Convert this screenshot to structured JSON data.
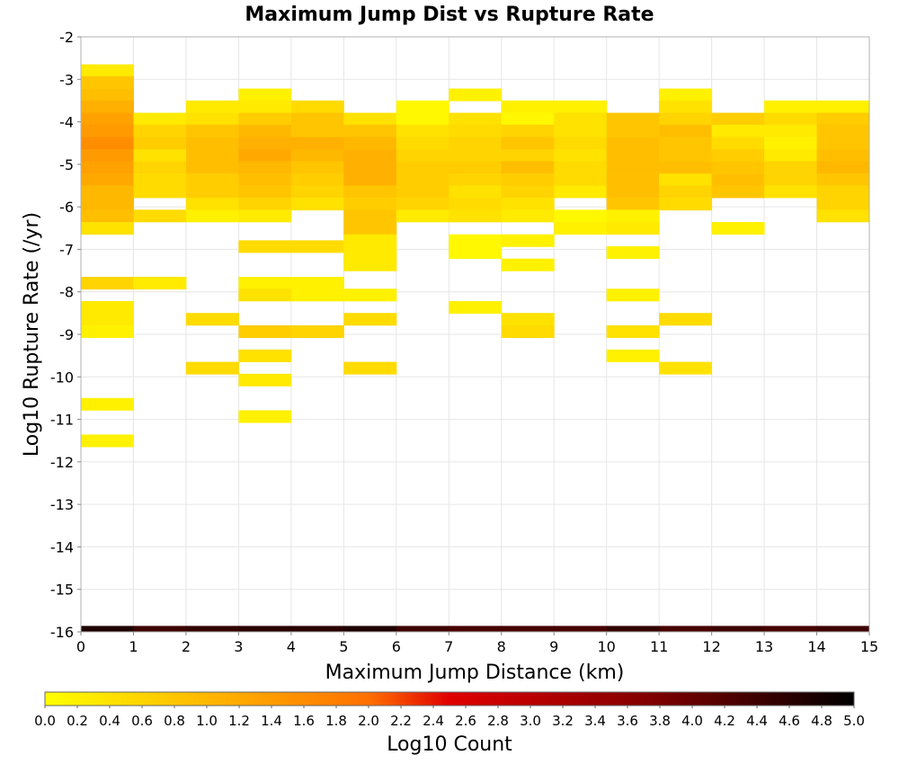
{
  "chart_data": {
    "type": "heatmap",
    "title": "Maximum Jump Dist vs Rupture Rate",
    "xlabel": "Maximum Jump Distance (km)",
    "ylabel": "Log10 Rupture Rate (/yr)",
    "xlim": [
      0,
      15
    ],
    "ylim": [
      -16,
      -2
    ],
    "x_ticks": [
      "0",
      "1",
      "2",
      "3",
      "4",
      "5",
      "6",
      "7",
      "8",
      "9",
      "10",
      "11",
      "12",
      "13",
      "14",
      "15"
    ],
    "y_ticks": [
      "-16",
      "-15",
      "-14",
      "-13",
      "-12",
      "-11",
      "-10",
      "-9",
      "-8",
      "-7",
      "-6",
      "-5",
      "-4",
      "-3",
      "-2"
    ],
    "x_bin_width": 1,
    "y_bin_height": 0.286,
    "grid": true,
    "colorbar": {
      "label": "Log10 Count",
      "range": [
        0,
        5
      ],
      "colors": [
        "#ffff00",
        "#ff7000",
        "#e00000",
        "#800000",
        "#000000"
      ],
      "ticks": [
        "0.0",
        "0.2",
        "0.4",
        "0.6",
        "0.8",
        "1.0",
        "1.2",
        "1.4",
        "1.6",
        "1.8",
        "2.0",
        "2.2",
        "2.4",
        "2.6",
        "2.8",
        "3.0",
        "3.2",
        "3.4",
        "3.6",
        "3.8",
        "4.0",
        "4.2",
        "4.4",
        "4.6",
        "4.8",
        "5.0"
      ]
    },
    "bottom_row": {
      "y": -15.93,
      "values": [
        4.7,
        4.4,
        4.5,
        4.6,
        4.6,
        4.7,
        4.4,
        4.3,
        4.3,
        4.3,
        4.5,
        4.3,
        4.4,
        4.3,
        4.4
      ]
    },
    "columns": [
      {
        "x": 0,
        "cells": [
          [
            -2.79,
            0.3
          ],
          [
            -3.07,
            0.8
          ],
          [
            -3.36,
            0.9
          ],
          [
            -3.64,
            1.1
          ],
          [
            -3.93,
            1.3
          ],
          [
            -4.21,
            1.4
          ],
          [
            -4.5,
            1.6
          ],
          [
            -4.79,
            1.4
          ],
          [
            -5.07,
            1.3
          ],
          [
            -5.36,
            1.2
          ],
          [
            -5.64,
            1.0
          ],
          [
            -5.93,
            1.0
          ],
          [
            -6.21,
            0.9
          ],
          [
            -6.5,
            0.4
          ],
          [
            -7.79,
            0.6
          ],
          [
            -8.36,
            0.3
          ],
          [
            -8.64,
            0.3
          ],
          [
            -8.93,
            0.2
          ],
          [
            -10.64,
            0.2
          ],
          [
            -11.5,
            0.2
          ]
        ]
      },
      {
        "x": 1,
        "cells": [
          [
            -3.93,
            0.3
          ],
          [
            -4.21,
            0.6
          ],
          [
            -4.5,
            0.7
          ],
          [
            -4.79,
            0.4
          ],
          [
            -5.07,
            0.6
          ],
          [
            -5.36,
            0.5
          ],
          [
            -5.64,
            0.5
          ],
          [
            -6.21,
            0.5
          ],
          [
            -7.79,
            0.3
          ]
        ]
      },
      {
        "x": 2,
        "cells": [
          [
            -3.64,
            0.3
          ],
          [
            -3.93,
            0.4
          ],
          [
            -4.21,
            0.8
          ],
          [
            -4.5,
            0.9
          ],
          [
            -4.79,
            0.9
          ],
          [
            -5.07,
            0.9
          ],
          [
            -5.36,
            0.7
          ],
          [
            -5.64,
            0.7
          ],
          [
            -5.93,
            0.4
          ],
          [
            -6.21,
            0.2
          ],
          [
            -8.64,
            0.5
          ],
          [
            -9.79,
            0.5
          ]
        ]
      },
      {
        "x": 3,
        "cells": [
          [
            -3.36,
            0.2
          ],
          [
            -3.64,
            0.3
          ],
          [
            -3.93,
            0.7
          ],
          [
            -4.21,
            1.0
          ],
          [
            -4.5,
            1.1
          ],
          [
            -4.79,
            1.2
          ],
          [
            -5.07,
            1.0
          ],
          [
            -5.36,
            0.9
          ],
          [
            -5.64,
            0.8
          ],
          [
            -5.93,
            0.6
          ],
          [
            -6.21,
            0.3
          ],
          [
            -6.93,
            0.5
          ],
          [
            -7.79,
            0.2
          ],
          [
            -8.07,
            0.4
          ],
          [
            -8.93,
            0.7
          ],
          [
            -9.5,
            0.4
          ],
          [
            -10.07,
            0.3
          ],
          [
            -10.93,
            0.2
          ]
        ]
      },
      {
        "x": 4,
        "cells": [
          [
            -3.64,
            0.5
          ],
          [
            -3.93,
            0.8
          ],
          [
            -4.21,
            0.8
          ],
          [
            -4.5,
            1.1
          ],
          [
            -4.79,
            1.0
          ],
          [
            -5.07,
            0.8
          ],
          [
            -5.36,
            0.7
          ],
          [
            -5.64,
            0.6
          ],
          [
            -5.93,
            0.4
          ],
          [
            -6.93,
            0.5
          ],
          [
            -7.79,
            0.2
          ],
          [
            -8.07,
            0.2
          ],
          [
            -8.93,
            0.6
          ]
        ]
      },
      {
        "x": 5,
        "cells": [
          [
            -3.93,
            0.4
          ],
          [
            -4.21,
            0.8
          ],
          [
            -4.5,
            1.0
          ],
          [
            -4.79,
            1.1
          ],
          [
            -5.07,
            1.1
          ],
          [
            -5.36,
            1.1
          ],
          [
            -5.64,
            0.8
          ],
          [
            -5.93,
            0.7
          ],
          [
            -6.21,
            0.8
          ],
          [
            -6.5,
            0.8
          ],
          [
            -6.79,
            0.3
          ],
          [
            -7.07,
            0.3
          ],
          [
            -7.36,
            0.3
          ],
          [
            -8.07,
            0.2
          ],
          [
            -8.64,
            0.5
          ],
          [
            -9.79,
            0.5
          ]
        ]
      },
      {
        "x": 6,
        "cells": [
          [
            -3.64,
            0.1
          ],
          [
            -3.93,
            0.1
          ],
          [
            -4.21,
            0.4
          ],
          [
            -4.5,
            0.5
          ],
          [
            -4.79,
            0.6
          ],
          [
            -5.07,
            0.7
          ],
          [
            -5.36,
            0.7
          ],
          [
            -5.64,
            0.7
          ],
          [
            -5.93,
            0.6
          ],
          [
            -6.21,
            0.3
          ]
        ]
      },
      {
        "x": 7,
        "cells": [
          [
            -3.36,
            0.2
          ],
          [
            -3.93,
            0.4
          ],
          [
            -4.21,
            0.5
          ],
          [
            -4.5,
            0.6
          ],
          [
            -4.79,
            0.6
          ],
          [
            -5.07,
            0.7
          ],
          [
            -5.36,
            0.6
          ],
          [
            -5.64,
            0.4
          ],
          [
            -5.93,
            0.5
          ],
          [
            -6.21,
            0.4
          ],
          [
            -6.79,
            0.1
          ],
          [
            -7.07,
            0.1
          ],
          [
            -8.36,
            0.2
          ]
        ]
      },
      {
        "x": 8,
        "cells": [
          [
            -3.64,
            0.2
          ],
          [
            -3.93,
            0.1
          ],
          [
            -4.21,
            0.6
          ],
          [
            -4.5,
            0.8
          ],
          [
            -4.79,
            0.6
          ],
          [
            -5.07,
            0.9
          ],
          [
            -5.36,
            0.7
          ],
          [
            -5.64,
            0.6
          ],
          [
            -5.93,
            0.4
          ],
          [
            -6.21,
            0.3
          ],
          [
            -6.79,
            0.2
          ],
          [
            -7.36,
            0.2
          ],
          [
            -8.64,
            0.4
          ],
          [
            -8.93,
            0.5
          ]
        ]
      },
      {
        "x": 9,
        "cells": [
          [
            -3.64,
            0.2
          ],
          [
            -3.93,
            0.4
          ],
          [
            -4.21,
            0.4
          ],
          [
            -4.5,
            0.5
          ],
          [
            -4.79,
            0.4
          ],
          [
            -5.07,
            0.5
          ],
          [
            -5.36,
            0.5
          ],
          [
            -5.64,
            0.3
          ],
          [
            -6.21,
            0.1
          ],
          [
            -6.5,
            0.2
          ]
        ]
      },
      {
        "x": 10,
        "cells": [
          [
            -3.93,
            0.8
          ],
          [
            -4.21,
            0.8
          ],
          [
            -4.5,
            0.9
          ],
          [
            -4.79,
            0.9
          ],
          [
            -5.07,
            0.9
          ],
          [
            -5.36,
            0.9
          ],
          [
            -5.64,
            0.9
          ],
          [
            -5.93,
            0.8
          ],
          [
            -6.21,
            0.2
          ],
          [
            -6.5,
            0.3
          ],
          [
            -7.07,
            0.2
          ],
          [
            -8.07,
            0.2
          ],
          [
            -8.93,
            0.4
          ],
          [
            -9.5,
            0.2
          ]
        ]
      },
      {
        "x": 11,
        "cells": [
          [
            -3.36,
            0.2
          ],
          [
            -3.64,
            0.4
          ],
          [
            -3.93,
            0.6
          ],
          [
            -4.21,
            0.9
          ],
          [
            -4.5,
            0.8
          ],
          [
            -4.79,
            0.8
          ],
          [
            -5.07,
            0.9
          ],
          [
            -5.36,
            0.4
          ],
          [
            -5.64,
            0.6
          ],
          [
            -5.93,
            0.5
          ],
          [
            -8.64,
            0.5
          ],
          [
            -9.79,
            0.4
          ]
        ]
      },
      {
        "x": 12,
        "cells": [
          [
            -3.93,
            0.7
          ],
          [
            -4.21,
            0.3
          ],
          [
            -4.5,
            0.5
          ],
          [
            -4.79,
            0.7
          ],
          [
            -5.07,
            0.8
          ],
          [
            -5.36,
            0.9
          ],
          [
            -5.64,
            0.8
          ],
          [
            -6.5,
            0.2
          ]
        ]
      },
      {
        "x": 13,
        "cells": [
          [
            -3.64,
            0.2
          ],
          [
            -3.93,
            0.5
          ],
          [
            -4.21,
            0.3
          ],
          [
            -4.5,
            0.2
          ],
          [
            -4.79,
            0.3
          ],
          [
            -5.07,
            0.6
          ],
          [
            -5.36,
            0.6
          ],
          [
            -5.64,
            0.4
          ]
        ]
      },
      {
        "x": 14,
        "cells": [
          [
            -3.64,
            0.2
          ],
          [
            -3.93,
            0.7
          ],
          [
            -4.21,
            0.8
          ],
          [
            -4.5,
            0.8
          ],
          [
            -4.79,
            0.9
          ],
          [
            -5.07,
            1.0
          ],
          [
            -5.36,
            0.8
          ],
          [
            -5.64,
            0.6
          ],
          [
            -5.93,
            0.6
          ],
          [
            -6.21,
            0.4
          ]
        ]
      }
    ]
  }
}
